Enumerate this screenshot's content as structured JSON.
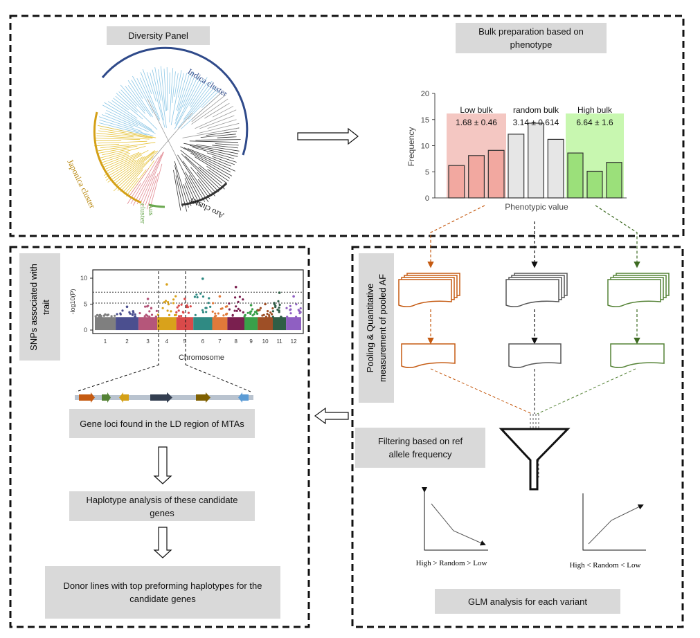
{
  "labels": {
    "diversity_panel": "Diversity Panel",
    "bulk_preparation": "Bulk preparation based on phenotype",
    "snps_trait": "SNPs associated with trait",
    "pooling": "Pooling & Quantitative measurement of pooled AF",
    "gene_loci": "Gene loci found in the LD region of MTAs",
    "haplotype": "Haplotype analysis of these candidate genes",
    "donor_lines": "Donor lines with top preforming haplotypes for the candidate genes",
    "filtering": "Filtering based on ref allele frequency",
    "glm": "GLM analysis for each variant"
  },
  "tree": {
    "indica": "Indica cluster",
    "japonica": "Japonica cluster",
    "aro": "Aro cluster",
    "aus_line1": "Aus",
    "aus_line2": "cluster"
  },
  "bulk_chart": {
    "ylabel": "Frequency",
    "xlabel": "Phenotypic value",
    "yticks": [
      "0",
      "5",
      "10",
      "15",
      "20"
    ],
    "groups": [
      {
        "name": "Low bulk",
        "stat": "1.68 ± 0.46",
        "color": "#f4c7c2",
        "bar_color": "#f2a8a0",
        "values": [
          6.2,
          8.1,
          9.1
        ]
      },
      {
        "name": "random bulk",
        "stat": "3.14 ± 0.614",
        "color": "#ffffff",
        "bar_color": "#e6e6e6",
        "values": [
          12.2,
          14.3,
          11.2
        ]
      },
      {
        "name": "High bulk",
        "stat": "6.64 ± 1.6",
        "color": "#c8f7b0",
        "bar_color": "#9be07a",
        "values": [
          8.6,
          5.1,
          6.8
        ]
      }
    ]
  },
  "manhattan": {
    "ylabel": "-log10(P)",
    "xlabel": "Chromosome",
    "yticks": [
      "0",
      "5",
      "10"
    ],
    "chromosomes": [
      "1",
      "2",
      "3",
      "4",
      "5",
      "6",
      "7",
      "8",
      "9",
      "10",
      "11",
      "12"
    ],
    "colors": [
      "#7f7f7f",
      "#4b4f8f",
      "#b5567a",
      "#d9a21b",
      "#d94a4a",
      "#2f8a83",
      "#e07a3a",
      "#7a1f4f",
      "#3aa04a",
      "#9e4f26",
      "#2f5e46",
      "#8f5fc2"
    ]
  },
  "glm_plots": {
    "left_caption": "High > Random > Low",
    "right_caption": "High < Random < Low"
  },
  "colors": {
    "low": "#c55a11",
    "random": "#555555",
    "high": "#548235"
  }
}
